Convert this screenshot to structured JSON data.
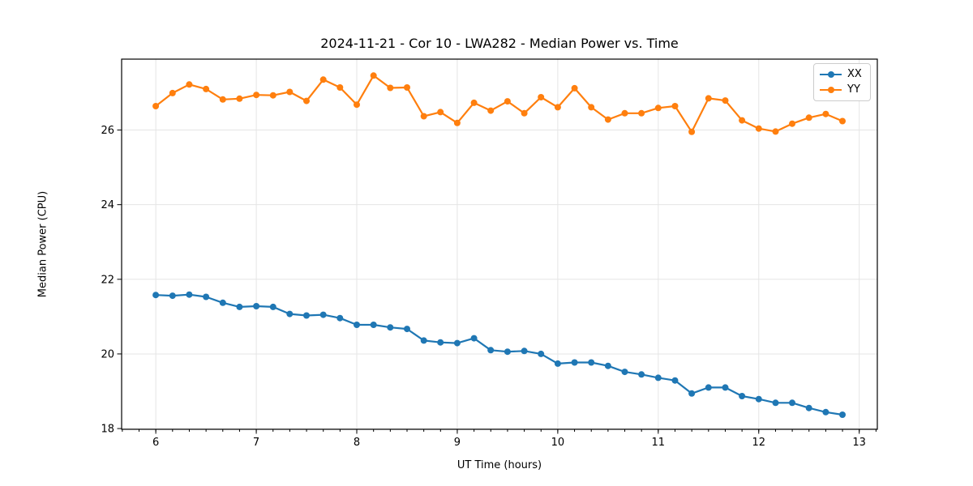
{
  "figure": {
    "background": "#ffffff"
  },
  "chart_data": {
    "type": "line",
    "title": "2024-11-21 - Cor 10 - LWA282 - Median Power vs. Time",
    "xlabel": "UT Time (hours)",
    "ylabel": "Median Power (CPU)",
    "xlim": [
      5.66,
      13.18
    ],
    "ylim": [
      17.98,
      27.9
    ],
    "xticks": [
      6,
      7,
      8,
      9,
      10,
      11,
      12,
      13
    ],
    "yticks": [
      18,
      20,
      22,
      24,
      26
    ],
    "x_minor_tick_step": 0.16667,
    "grid": true,
    "legend_position": "upper right",
    "colors": {
      "grid": "#e5e5e5",
      "axis": "#000000",
      "text": "#000000",
      "series_xx": "#1f77b4",
      "series_yy": "#ff7f0e"
    },
    "x": [
      6.0,
      6.167,
      6.333,
      6.5,
      6.667,
      6.833,
      7.0,
      7.167,
      7.333,
      7.5,
      7.667,
      7.833,
      8.0,
      8.167,
      8.333,
      8.5,
      8.667,
      8.833,
      9.0,
      9.167,
      9.333,
      9.5,
      9.667,
      9.833,
      10.0,
      10.167,
      10.333,
      10.5,
      10.667,
      10.833,
      11.0,
      11.167,
      11.333,
      11.5,
      11.667,
      11.833,
      12.0,
      12.167,
      12.333,
      12.5,
      12.667,
      12.833
    ],
    "series": [
      {
        "name": "XX",
        "color": "#1f77b4",
        "marker": "circle",
        "values": [
          21.58,
          21.56,
          21.59,
          21.53,
          21.37,
          21.26,
          21.28,
          21.26,
          21.07,
          21.03,
          21.05,
          20.96,
          20.78,
          20.78,
          20.71,
          20.67,
          20.36,
          20.31,
          20.29,
          20.42,
          20.1,
          20.06,
          20.08,
          20.0,
          19.74,
          19.77,
          19.77,
          19.68,
          19.52,
          19.45,
          19.36,
          19.29,
          18.94,
          19.1,
          19.1,
          18.87,
          18.79,
          18.69,
          18.69,
          18.55,
          18.44,
          18.37
        ]
      },
      {
        "name": "YY",
        "color": "#ff7f0e",
        "marker": "circle",
        "values": [
          26.64,
          26.99,
          27.22,
          27.1,
          26.82,
          26.84,
          26.94,
          26.93,
          27.02,
          26.78,
          27.35,
          27.14,
          26.68,
          27.46,
          27.13,
          27.14,
          26.37,
          26.48,
          26.19,
          26.73,
          26.52,
          26.77,
          26.45,
          26.88,
          26.61,
          27.12,
          26.61,
          26.28,
          26.45,
          26.45,
          26.59,
          26.64,
          25.95,
          26.85,
          26.79,
          26.26,
          26.04,
          25.96,
          26.17,
          26.33,
          26.43,
          26.24
        ]
      }
    ]
  }
}
